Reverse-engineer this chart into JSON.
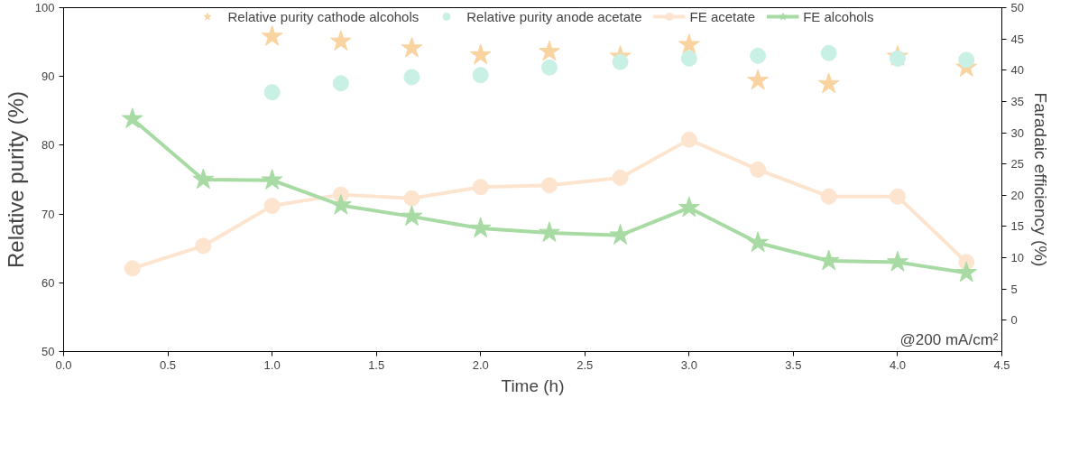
{
  "chart_data": {
    "type": "line",
    "xlabel": "Time (h)",
    "ylabel": "Relative purity (%)",
    "y2label": "Faradaic efficiency (%)",
    "x": [
      0.33,
      0.67,
      1.0,
      1.33,
      1.67,
      2.0,
      2.33,
      2.67,
      3.0,
      3.33,
      3.67,
      4.0,
      4.33
    ],
    "series": [
      {
        "name": "Relative purity cathode alcohols",
        "type": "scatter",
        "marker": "star",
        "color": "#f9d4a0",
        "values": [
          null,
          null,
          95.8,
          95.1,
          94.1,
          93.1,
          93.6,
          92.9,
          94.6,
          89.4,
          88.9,
          92.9,
          91.3
        ]
      },
      {
        "name": "Relative purity anode acetate",
        "type": "scatter",
        "marker": "circle",
        "color": "#c9f0e5",
        "values": [
          null,
          null,
          87.7,
          89.0,
          89.9,
          90.2,
          91.3,
          92.1,
          92.6,
          93.0,
          93.4,
          92.6,
          92.4
        ]
      },
      {
        "name": "FE acetate",
        "marker": "circle",
        "axis": "y2",
        "color": "#fde4cf",
        "values": [
          8.3,
          11.9,
          18.3,
          20.1,
          19.5,
          21.3,
          21.6,
          22.8,
          28.9,
          24.1,
          19.8,
          19.8,
          9.3
        ]
      },
      {
        "name": "FE alcohols",
        "marker": "star",
        "axis": "y2",
        "color": "#a8dba3",
        "values": [
          32.2,
          22.5,
          22.4,
          18.4,
          16.6,
          14.7,
          14.0,
          13.6,
          18.0,
          12.4,
          9.5,
          9.3,
          7.6
        ]
      }
    ],
    "xlim": [
      0,
      4.5
    ],
    "xticks": [
      {
        "value": 0,
        "label": "0.0"
      },
      0.5,
      {
        "value": 1,
        "label": "1.0"
      },
      1.5,
      {
        "value": 2,
        "label": "2.0"
      },
      2.5,
      {
        "value": 3,
        "label": "3.0"
      },
      3.5,
      {
        "value": 4,
        "label": "4.0"
      },
      4.5
    ],
    "ylim": [
      50,
      100
    ],
    "yticks": [
      50,
      60,
      70,
      80,
      90,
      100
    ],
    "y2lim": [
      -5,
      50
    ],
    "y2ticks": [
      0,
      5,
      10,
      15,
      20,
      25,
      30,
      35,
      40,
      45,
      50
    ],
    "annotations": [
      "@200 mA/cm²"
    ],
    "legend": "top",
    "grid": false
  }
}
